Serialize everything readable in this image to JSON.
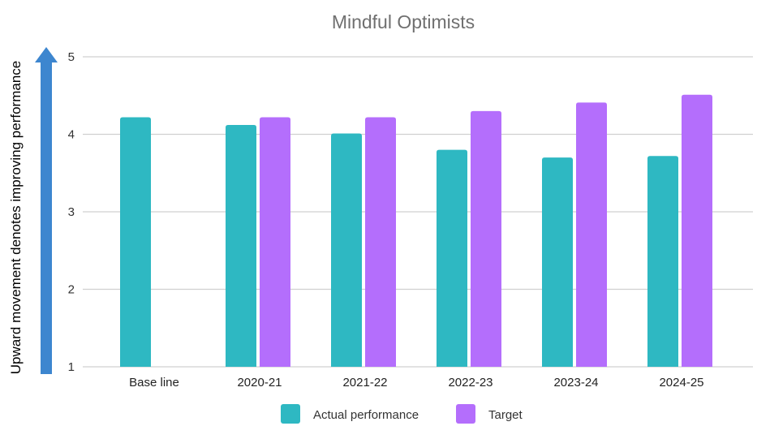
{
  "chart_data": {
    "type": "bar",
    "title": "Mindful Optimists",
    "ylabel": "Upward movement denotes improving performance",
    "xlabel": "",
    "ylim": [
      1,
      5
    ],
    "yticks": [
      1,
      2,
      3,
      4,
      5
    ],
    "grid": true,
    "legend_position": "bottom",
    "categories": [
      "Base line",
      "2020-21",
      "2021-22",
      "2022-23",
      "2023-24",
      "2024-25"
    ],
    "series": [
      {
        "name": "Actual performance",
        "color": "#2EB8C2",
        "values": [
          4.22,
          4.12,
          4.01,
          3.8,
          3.7,
          3.72
        ]
      },
      {
        "name": "Target",
        "color": "#B46EFC",
        "values": [
          null,
          4.22,
          4.22,
          4.3,
          4.41,
          4.51
        ]
      }
    ],
    "arrow_color": "#3D86CF"
  }
}
